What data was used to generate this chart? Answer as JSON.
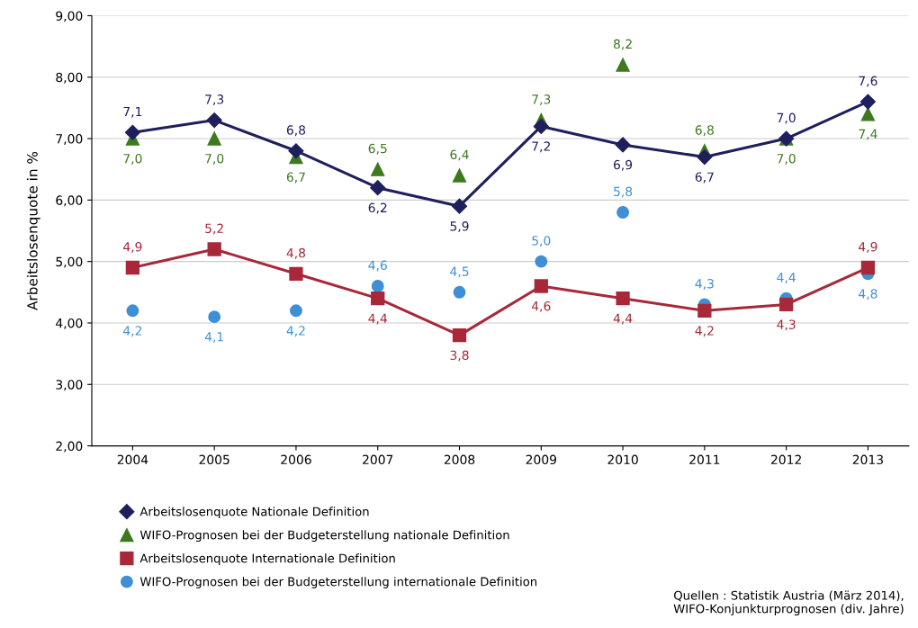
{
  "chart_data": {
    "type": "line",
    "ylabel": "Arbeitslosenquote in %",
    "categories": [
      "2004",
      "2005",
      "2006",
      "2007",
      "2008",
      "2009",
      "2010",
      "2011",
      "2012",
      "2013"
    ],
    "series": [
      {
        "name": "Arbeitslosenquote Nationale Definition",
        "color": "#1f1f5e",
        "marker": "diamond",
        "values": [
          7.1,
          7.3,
          6.8,
          6.2,
          5.9,
          7.2,
          6.9,
          6.7,
          7.0,
          7.6
        ],
        "value_labels": [
          "7,1",
          "7,3",
          "6,8",
          "6,2",
          "5,9",
          "7,2",
          "6,9",
          "6,7",
          "7,0",
          "7,6"
        ]
      },
      {
        "name": "WIFO-Prognosen bei der Budgeterstellung nationale Definition",
        "type": "scatter",
        "color": "#3d7a1e",
        "marker": "triangle",
        "values": [
          7.0,
          7.0,
          6.7,
          6.5,
          6.4,
          7.3,
          8.2,
          6.8,
          7.0,
          7.4
        ],
        "value_labels": [
          "7,0",
          "7,0",
          "6,7",
          "6,5",
          "6,4",
          "7,3",
          "8,2",
          "6,8",
          "7,0",
          "7,4"
        ]
      },
      {
        "name": "Arbeitslosenquote Internationale Definition",
        "color": "#a8283a",
        "marker": "square",
        "values": [
          4.9,
          5.2,
          4.8,
          4.4,
          3.8,
          4.6,
          4.4,
          4.2,
          4.3,
          4.9
        ],
        "value_labels": [
          "4,9",
          "5,2",
          "4,8",
          "4,4",
          "3,8",
          "4,6",
          "4,4",
          "4,2",
          "4,3",
          "4,9"
        ]
      },
      {
        "name": "WIFO-Prognosen bei der Budgeterstellung internationale Definition",
        "type": "scatter",
        "color": "#3f8fd6",
        "marker": "circle",
        "values": [
          4.2,
          4.1,
          4.2,
          4.6,
          4.5,
          5.0,
          5.8,
          4.3,
          4.4,
          4.8
        ],
        "value_labels": [
          "4,2",
          "4,1",
          "4,2",
          "4,6",
          "4,5",
          "5,0",
          "5,8",
          "4,3",
          "4,4",
          "4,8"
        ]
      }
    ],
    "ylim": [
      2,
      9
    ],
    "yticks": [
      {
        "value": 2,
        "label": "2,00"
      },
      {
        "value": 3,
        "label": "3,00"
      },
      {
        "value": 4,
        "label": "4,00"
      },
      {
        "value": 5,
        "label": "5,00"
      },
      {
        "value": 6,
        "label": "6,00"
      },
      {
        "value": 7,
        "label": "7,00"
      },
      {
        "value": 8,
        "label": "8,00"
      },
      {
        "value": 9,
        "label": "9,00"
      }
    ],
    "grid": "y",
    "legend": "bottom",
    "annotations": [
      "Quellen : Statistik Austria (März 2014),\nWIFO-Konjunkturprognosen (div. Jahre)"
    ]
  }
}
